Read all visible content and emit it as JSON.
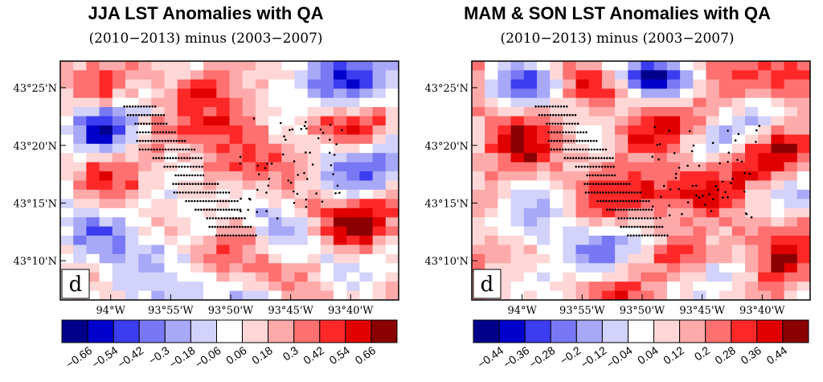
{
  "chart_data": [
    {
      "type": "heatmap",
      "title": "JJA LST Anomalies with QA",
      "subtitle": "(2010−2013) minus (2003−2007)",
      "panel_label": "d",
      "y_ticks": [
        {
          "label": "43°25'N",
          "value": 43.4167
        },
        {
          "label": "43°20'N",
          "value": 43.3333
        },
        {
          "label": "43°15'N",
          "value": 43.25
        },
        {
          "label": "43°10'N",
          "value": 43.1667
        }
      ],
      "x_ticks": [
        {
          "label": "94°W",
          "value": -94.0
        },
        {
          "label": "93°55'W",
          "value": -93.9167
        },
        {
          "label": "93°50'W",
          "value": -93.8333
        },
        {
          "label": "93°45'W",
          "value": -93.75
        },
        {
          "label": "93°40'W",
          "value": -93.6667
        }
      ],
      "xlim": [
        -94.07,
        -93.6
      ],
      "ylim": [
        43.11,
        43.455
      ],
      "colorbar": {
        "labels": [
          "−0.66",
          "−0.54",
          "−0.42",
          "−0.3",
          "−0.18",
          "−0.06",
          "0.06",
          "0.18",
          "0.3",
          "0.42",
          "0.54",
          "0.66"
        ],
        "colors": [
          "#00008b",
          "#0000cd",
          "#3c3cf0",
          "#7878f5",
          "#a8a8f8",
          "#d2d2fb",
          "#ffffff",
          "#ffd7d7",
          "#ffaaaa",
          "#ff7070",
          "#ff2828",
          "#e10000",
          "#8b0000"
        ]
      }
    },
    {
      "type": "heatmap",
      "title": "MAM & SON LST Anomalies with QA",
      "subtitle": "(2010−2013) minus (2003−2007)",
      "panel_label": "d",
      "y_ticks": [
        {
          "label": "43°25'N",
          "value": 43.4167
        },
        {
          "label": "43°20'N",
          "value": 43.3333
        },
        {
          "label": "43°15'N",
          "value": 43.25
        },
        {
          "label": "43°10'N",
          "value": 43.1667
        }
      ],
      "x_ticks": [
        {
          "label": "94°W",
          "value": -94.0
        },
        {
          "label": "93°55'W",
          "value": -93.9167
        },
        {
          "label": "93°50'W",
          "value": -93.8333
        },
        {
          "label": "93°45'W",
          "value": -93.75
        },
        {
          "label": "93°40'W",
          "value": -93.6667
        }
      ],
      "xlim": [
        -94.07,
        -93.6
      ],
      "ylim": [
        43.11,
        43.455
      ],
      "colorbar": {
        "labels": [
          "−0.44",
          "−0.36",
          "−0.28",
          "−0.2",
          "−0.12",
          "−0.04",
          "0.04",
          "0.12",
          "0.2",
          "0.28",
          "0.36",
          "0.44"
        ],
        "colors": [
          "#00008b",
          "#0000cd",
          "#3c3cf0",
          "#7878f5",
          "#a8a8f8",
          "#d2d2fb",
          "#ffffff",
          "#ffd7d7",
          "#ffaaaa",
          "#ff7070",
          "#ff2828",
          "#e10000",
          "#8b0000"
        ]
      }
    }
  ]
}
